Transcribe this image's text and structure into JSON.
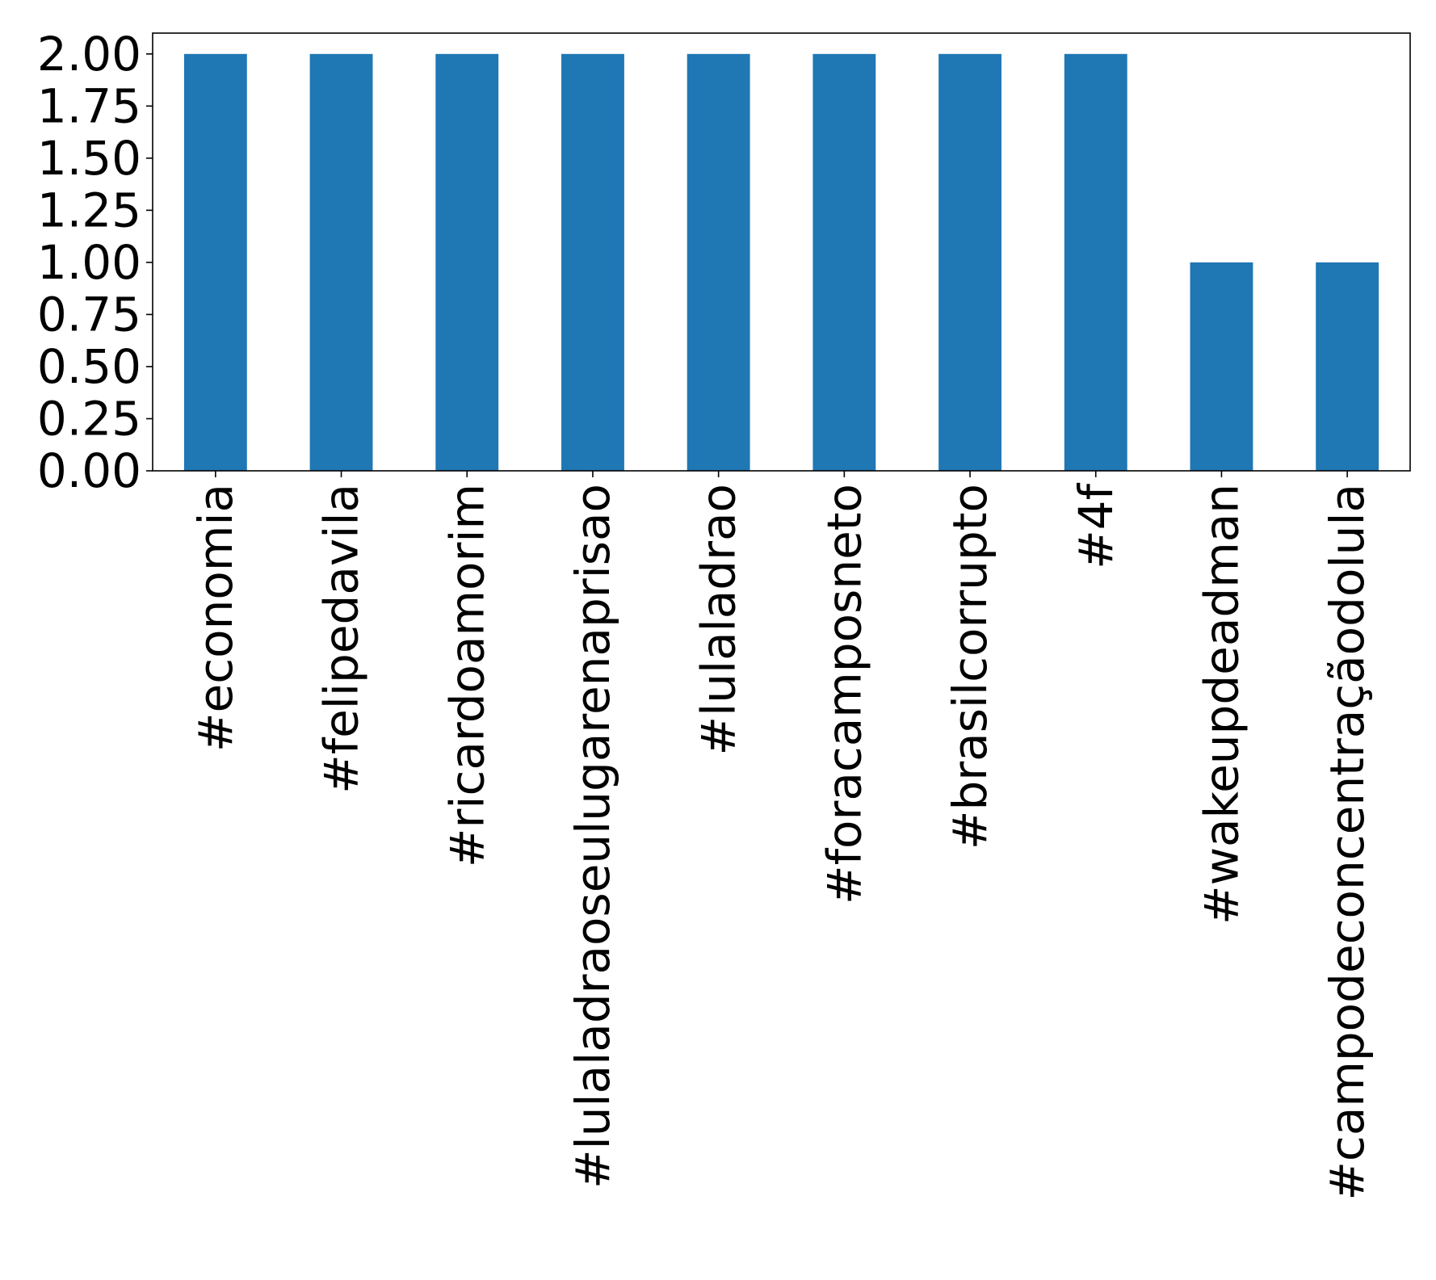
{
  "chart_data": {
    "type": "bar",
    "categories": [
      "#economia",
      "#felipedavila",
      "#ricardoamorim",
      "#lulaladraoseulugarenaprisao",
      "#lulaladrao",
      "#foracamposneto",
      "#brasilcorrupto",
      "#4f",
      "#wakeupdeadman",
      "#campodeconcentraçãodolula"
    ],
    "values": [
      2,
      2,
      2,
      2,
      2,
      2,
      2,
      2,
      1,
      1
    ],
    "y_ticks": [
      "0.00",
      "0.25",
      "0.50",
      "0.75",
      "1.00",
      "1.25",
      "1.50",
      "1.75",
      "2.00"
    ],
    "ylim": [
      0,
      2.1
    ],
    "bar_color": "#1f77b4",
    "title": "",
    "xlabel": "",
    "ylabel": "",
    "grid": false,
    "legend": false
  }
}
